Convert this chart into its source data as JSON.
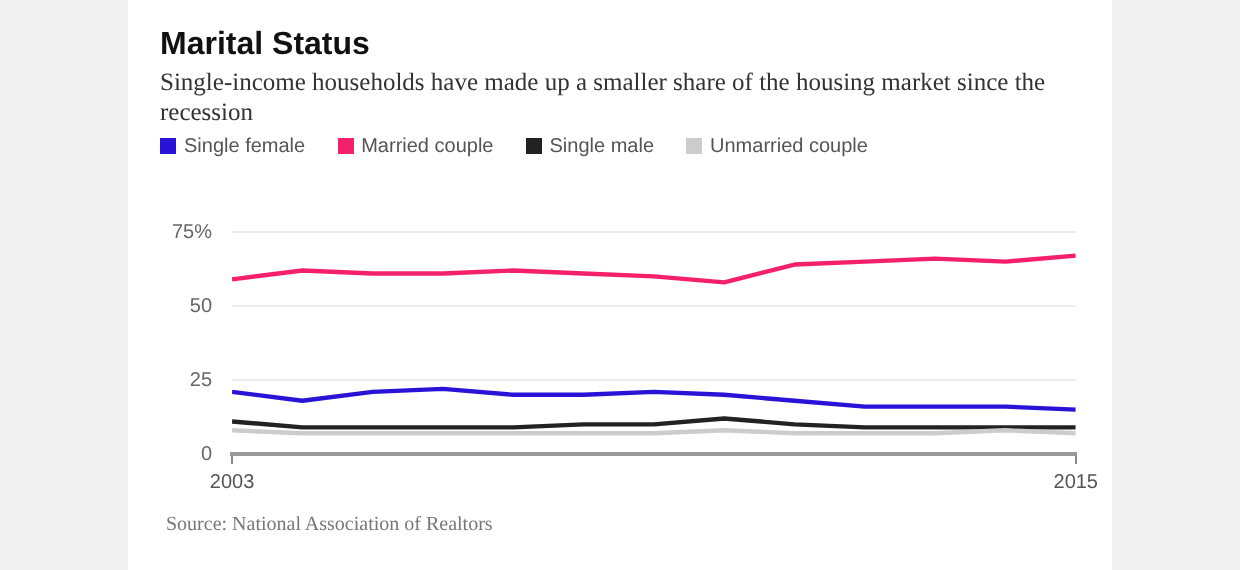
{
  "chart_data": {
    "type": "line",
    "title": "Marital Status",
    "subtitle": "Single-income households have made up a smaller share of the housing market since the recession",
    "x": [
      2003,
      2004,
      2005,
      2006,
      2007,
      2008,
      2009,
      2010,
      2011,
      2012,
      2013,
      2014,
      2015
    ],
    "series": [
      {
        "name": "Single female",
        "color": "#2a13d6",
        "values": [
          21,
          18,
          21,
          22,
          20,
          20,
          21,
          20,
          18,
          16,
          16,
          16,
          15
        ]
      },
      {
        "name": "Married couple",
        "color": "#f5206a",
        "values": [
          59,
          62,
          61,
          61,
          62,
          61,
          60,
          58,
          64,
          65,
          66,
          65,
          67
        ]
      },
      {
        "name": "Single male",
        "color": "#222222",
        "values": [
          11,
          9,
          9,
          9,
          9,
          10,
          10,
          12,
          10,
          9,
          9,
          9,
          9
        ]
      },
      {
        "name": "Unmarried couple",
        "color": "#cccccc",
        "values": [
          8,
          7,
          7,
          7,
          7,
          7,
          7,
          8,
          7,
          7,
          7,
          8,
          7
        ]
      }
    ],
    "xlim": [
      2003,
      2015
    ],
    "xticks": [
      2003,
      2015
    ],
    "ylim": [
      0,
      75
    ],
    "yticks": [
      0,
      25,
      50,
      {
        "value": 75,
        "label": "75%"
      }
    ],
    "grid": "y",
    "legend": "top",
    "marker": "none",
    "line_style": "solid",
    "annotations": [
      "Source: National Association of Realtors"
    ]
  }
}
